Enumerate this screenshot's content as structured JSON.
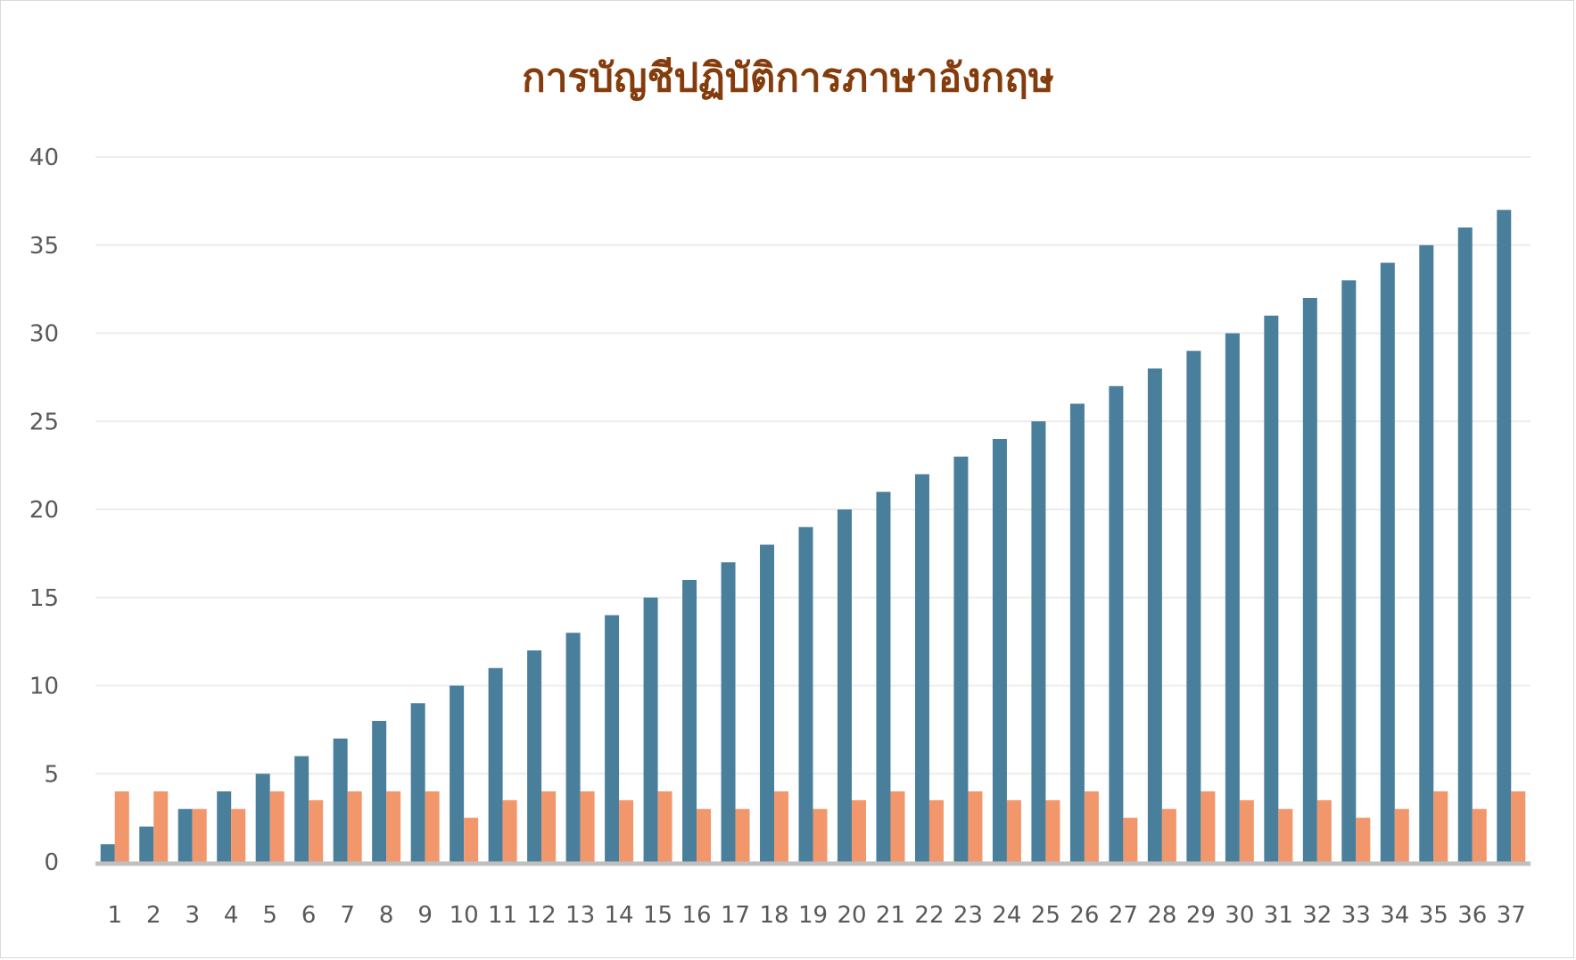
{
  "chart_data": {
    "type": "bar",
    "title": "การบัญชีปฏิบัติการภาษาอังกฤษ",
    "xlabel": "",
    "ylabel": "",
    "ylim": [
      0,
      40
    ],
    "yticks": [
      "0",
      "5",
      "10",
      "15",
      "20",
      "25",
      "30",
      "35",
      "40"
    ],
    "grid": true,
    "legend": "none",
    "categories": [
      "1",
      "2",
      "3",
      "4",
      "5",
      "6",
      "7",
      "8",
      "9",
      "10",
      "11",
      "12",
      "13",
      "14",
      "15",
      "16",
      "17",
      "18",
      "19",
      "20",
      "21",
      "22",
      "23",
      "24",
      "25",
      "26",
      "27",
      "28",
      "29",
      "30",
      "31",
      "32",
      "33",
      "34",
      "35",
      "36",
      "37"
    ],
    "series": [
      {
        "color": "#4a7f9c",
        "values": [
          1,
          2,
          3,
          4,
          5,
          6,
          7,
          8,
          9,
          10,
          11,
          12,
          13,
          14,
          15,
          16,
          17,
          18,
          19,
          20,
          21,
          22,
          23,
          24,
          25,
          26,
          27,
          28,
          29,
          30,
          31,
          32,
          33,
          34,
          35,
          36,
          37
        ]
      },
      {
        "color": "#f2976b",
        "values": [
          4,
          4,
          3,
          3,
          4,
          3.5,
          4,
          4,
          4,
          2.5,
          3.5,
          4,
          4,
          3.5,
          4,
          3,
          3,
          4,
          3,
          3.5,
          4,
          3.5,
          4,
          3.5,
          3.5,
          4,
          2.5,
          3,
          4,
          3.5,
          3,
          3.5,
          2.5,
          3,
          4,
          3,
          4
        ]
      }
    ]
  }
}
